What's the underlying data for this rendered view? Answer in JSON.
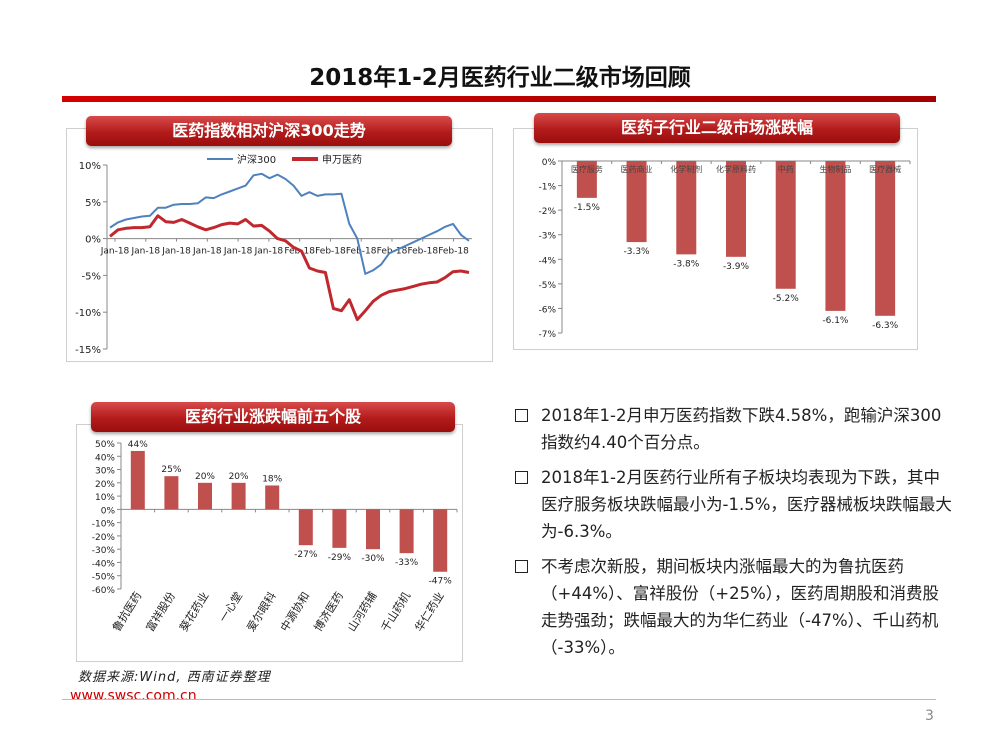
{
  "title": "2018年1-2月医药行业二级市场回顾",
  "ribbons": {
    "index_trend": "医药指数相对沪深300走势",
    "subsector": "医药子行业二级市场涨跌幅",
    "top_stocks": "医药行业涨跌幅前五个股"
  },
  "bullets": [
    "2018年1-2月申万医药指数下跌4.58%，跑输沪深300指数约4.40个百分点。",
    "2018年1-2月医药行业所有子板块均表现为下跌，其中医疗服务板块跌幅最小为-1.5%，医疗器械板块跌幅最大为-6.3%。",
    "不考虑次新股，期间板块内涨幅最大的为鲁抗医药（+44%）、富祥股份（+25%），医药周期股和消费股走势强劲；跌幅最大的为华仁药业（-47%）、千山药机（-33%）。"
  ],
  "source": "数据来源:Wind, 西南证券整理",
  "website": "www.swsc.com.cn",
  "page_number": "3",
  "colors": {
    "accent": "#c0504d",
    "line1": "#4f81bd",
    "line2": "#c0282d"
  },
  "chart_data": [
    {
      "id": "index_trend",
      "type": "line",
      "title": "医药指数相对沪深300走势",
      "y_ticks": [
        "10%",
        "5%",
        "0%",
        "-5%",
        "-10%",
        "-15%"
      ],
      "ylim": [
        -15,
        10
      ],
      "x_tick_labels": [
        "Jan-18",
        "Jan-18",
        "Jan-18",
        "Jan-18",
        "Jan-18",
        "Jan-18",
        "Feb-18",
        "Feb-18",
        "Feb-18",
        "Feb-18",
        "Feb-18",
        "Feb-18"
      ],
      "series": [
        {
          "name": "沪深300",
          "color": "#4f81bd",
          "values": [
            1.5,
            2.2,
            2.6,
            2.8,
            3.0,
            3.1,
            4.2,
            4.2,
            4.6,
            4.7,
            4.7,
            4.8,
            5.6,
            5.5,
            6.0,
            6.4,
            6.8,
            7.2,
            8.6,
            8.8,
            8.2,
            8.7,
            8.1,
            7.2,
            5.8,
            6.3,
            5.8,
            6.0,
            6.0,
            6.1,
            2.0,
            0.0,
            -4.8,
            -4.3,
            -3.5,
            -2.0,
            -1.5,
            -1.0,
            -0.5,
            0.0,
            0.5,
            1.0,
            1.6,
            2.0,
            0.5,
            -0.3
          ]
        },
        {
          "name": "申万医药",
          "color": "#c0282d",
          "values": [
            0.3,
            1.2,
            1.4,
            1.5,
            1.5,
            1.6,
            3.1,
            2.3,
            2.2,
            2.6,
            2.1,
            1.6,
            1.2,
            1.5,
            1.9,
            2.1,
            2.0,
            2.6,
            1.7,
            1.8,
            1.0,
            0.0,
            -0.3,
            -1.2,
            -1.7,
            -4.0,
            -4.4,
            -4.6,
            -9.5,
            -9.8,
            -8.3,
            -11.0,
            -9.8,
            -8.5,
            -7.7,
            -7.2,
            -7.0,
            -6.8,
            -6.5,
            -6.2,
            -6.0,
            -5.9,
            -5.3,
            -4.5,
            -4.4,
            -4.6
          ]
        }
      ]
    },
    {
      "id": "subsector",
      "type": "bar",
      "title": "医药子行业二级市场涨跌幅",
      "categories": [
        "医疗服务",
        "医药商业",
        "化学制剂",
        "化学原料药",
        "中药",
        "生物制品",
        "医疗器械"
      ],
      "values": [
        -1.5,
        -3.3,
        -3.8,
        -3.9,
        -5.2,
        -6.1,
        -6.3
      ],
      "data_labels": [
        "-1.5%",
        "-3.3%",
        "-3.8%",
        "-3.9%",
        "-5.2%",
        "-6.1%",
        "-6.3%"
      ],
      "y_ticks": [
        "0%",
        "-1%",
        "-2%",
        "-3%",
        "-4%",
        "-5%",
        "-6%",
        "-7%"
      ],
      "ylim": [
        -7,
        0
      ]
    },
    {
      "id": "top_stocks",
      "type": "bar",
      "title": "医药行业涨跌幅前五个股",
      "categories": [
        "鲁抗医药",
        "富祥股份",
        "葵花药业",
        "一心堂",
        "爱尔眼科",
        "中源协和",
        "博济医药",
        "山河药辅",
        "千山药机",
        "华仁药业"
      ],
      "values": [
        44,
        25,
        20,
        20,
        18,
        -27,
        -29,
        -30,
        -33,
        -47
      ],
      "data_labels": [
        "44%",
        "25%",
        "20%",
        "20%",
        "18%",
        "-27%",
        "-29%",
        "-30%",
        "-33%",
        "-47%"
      ],
      "y_ticks": [
        "50%",
        "40%",
        "30%",
        "20%",
        "10%",
        "0%",
        "-10%",
        "-20%",
        "-30%",
        "-40%",
        "-50%",
        "-60%"
      ],
      "ylim": [
        -60,
        50
      ]
    }
  ]
}
